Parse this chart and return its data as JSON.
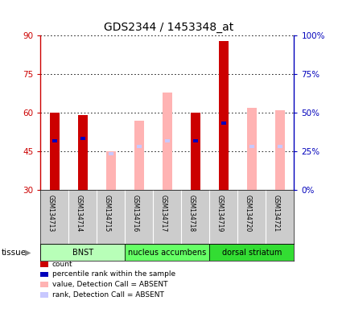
{
  "title": "GDS2344 / 1453348_at",
  "samples": [
    "GSM134713",
    "GSM134714",
    "GSM134715",
    "GSM134716",
    "GSM134717",
    "GSM134718",
    "GSM134719",
    "GSM134720",
    "GSM134721"
  ],
  "ylim_left": [
    30,
    90
  ],
  "ylim_right": [
    0,
    100
  ],
  "yticks_left": [
    30,
    45,
    60,
    75,
    90
  ],
  "yticks_right": [
    0,
    25,
    50,
    75,
    100
  ],
  "ytick_labels_right": [
    "0%",
    "25%",
    "50%",
    "75%",
    "100%"
  ],
  "red_bars": [
    60,
    59,
    0,
    0,
    0,
    60,
    88,
    0,
    0
  ],
  "blue_markers": [
    49,
    50,
    0,
    0,
    0,
    49,
    56,
    0,
    0
  ],
  "pink_bars": [
    0,
    0,
    45,
    57,
    68,
    0,
    0,
    62,
    61
  ],
  "lavender_markers": [
    0,
    0,
    44,
    47,
    49,
    0,
    0,
    47,
    47
  ],
  "tissue_groups": [
    {
      "label": "BNST",
      "start": 0,
      "end": 3
    },
    {
      "label": "nucleus accumbens",
      "start": 3,
      "end": 6
    },
    {
      "label": "dorsal striatum",
      "start": 6,
      "end": 9
    }
  ],
  "bg_tissue_colors": [
    "#b8ffb8",
    "#66ff66",
    "#33dd33"
  ],
  "tissue_label": "tissue",
  "legend_items": [
    {
      "color": "#cc0000",
      "label": "count"
    },
    {
      "color": "#0000bb",
      "label": "percentile rank within the sample"
    },
    {
      "color": "#ffb3b3",
      "label": "value, Detection Call = ABSENT"
    },
    {
      "color": "#c8c8ff",
      "label": "rank, Detection Call = ABSENT"
    }
  ],
  "bar_width": 0.35,
  "left_axis_color": "#cc0000",
  "right_axis_color": "#0000bb",
  "bg_samples": "#cccccc",
  "title_fontsize": 10
}
